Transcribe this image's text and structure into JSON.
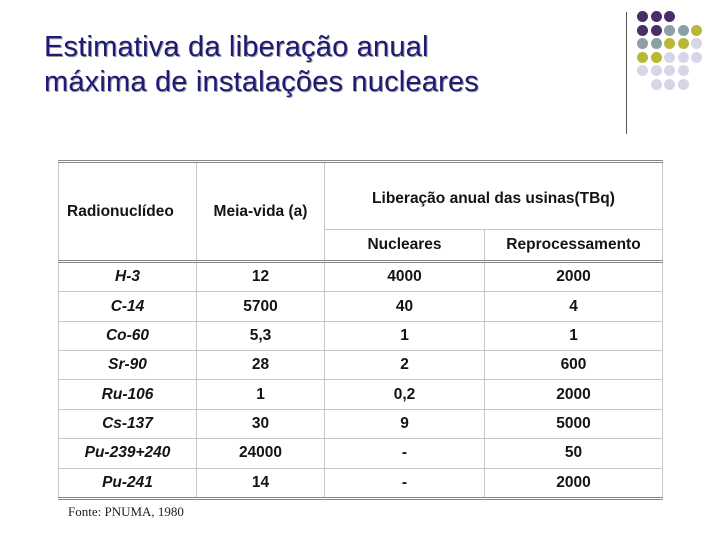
{
  "title": {
    "line1": "Estimativa da liberação anual",
    "line2": "máxima de instalações nucleares"
  },
  "decoration": {
    "dot_colors": [
      "#4a2d6b",
      "#8aa0a4",
      "#b8b836",
      "#d6d6e6"
    ]
  },
  "table": {
    "headers": {
      "radionuclide": "Radionuclídeo",
      "half_life": "Meia-vida (a)",
      "release": "Liberação anual das usinas(TBq)",
      "nuclear": "Nucleares",
      "reprocessing": "Reprocessamento"
    },
    "rows": [
      {
        "nuclide": "H-3",
        "half_life": "12",
        "nuclear": "4000",
        "reprocessing": "2000"
      },
      {
        "nuclide": "C-14",
        "half_life": "5700",
        "nuclear": "40",
        "reprocessing": "4"
      },
      {
        "nuclide": "Co-60",
        "half_life": "5,3",
        "nuclear": "1",
        "reprocessing": "1"
      },
      {
        "nuclide": "Sr-90",
        "half_life": "28",
        "nuclear": "2",
        "reprocessing": "600"
      },
      {
        "nuclide": "Ru-106",
        "half_life": "1",
        "nuclear": "0,2",
        "reprocessing": "2000"
      },
      {
        "nuclide": "Cs-137",
        "half_life": "30",
        "nuclear": "9",
        "reprocessing": "5000"
      },
      {
        "nuclide": "Pu-239+240",
        "half_life": "24000",
        "nuclear": "-",
        "reprocessing": "50"
      },
      {
        "nuclide": "Pu-241",
        "half_life": "14",
        "nuclear": "-",
        "reprocessing": "2000"
      }
    ]
  },
  "source": "Fonte: PNUMA, 1980"
}
